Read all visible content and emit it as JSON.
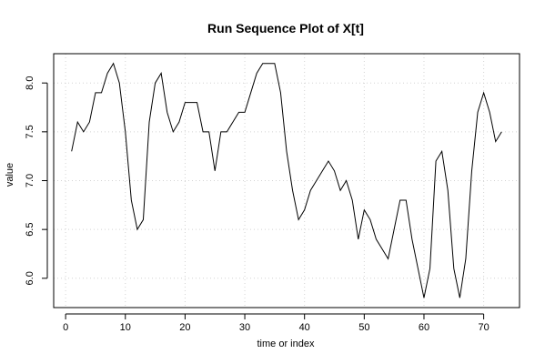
{
  "chart_data": {
    "type": "line",
    "title": "Run Sequence Plot of X[t]",
    "xlabel": "time or index",
    "ylabel": "value",
    "xlim": [
      -2,
      76
    ],
    "ylim": [
      5.7,
      8.3
    ],
    "x_ticks": [
      0,
      10,
      20,
      30,
      40,
      50,
      60,
      70
    ],
    "y_ticks": [
      6.0,
      6.5,
      7.0,
      7.5,
      8.0
    ],
    "y_tick_labels": [
      "6.0",
      "6.5",
      "7.0",
      "7.5",
      "8.0"
    ],
    "grid": true,
    "series": [
      {
        "color": "#000000",
        "x": [
          1,
          2,
          3,
          4,
          5,
          6,
          7,
          8,
          9,
          10,
          11,
          12,
          13,
          14,
          15,
          16,
          17,
          18,
          19,
          20,
          21,
          22,
          23,
          24,
          25,
          26,
          27,
          28,
          29,
          30,
          31,
          32,
          33,
          34,
          35,
          36,
          37,
          38,
          39,
          40,
          41,
          42,
          43,
          44,
          45,
          46,
          47,
          48,
          49,
          50,
          51,
          52,
          53,
          54,
          55,
          56,
          57,
          58,
          59,
          60,
          61,
          62,
          63,
          64,
          65,
          66,
          67,
          68,
          69,
          70,
          71,
          72,
          73
        ],
        "values": [
          7.3,
          7.6,
          7.5,
          7.6,
          7.9,
          7.9,
          8.1,
          8.2,
          8.0,
          7.5,
          6.8,
          6.5,
          6.6,
          7.6,
          8.0,
          8.1,
          7.7,
          7.5,
          7.6,
          7.8,
          7.8,
          7.8,
          7.5,
          7.5,
          7.1,
          7.5,
          7.5,
          7.6,
          7.7,
          7.7,
          7.9,
          8.1,
          8.2,
          8.2,
          8.2,
          7.9,
          7.3,
          6.9,
          6.6,
          6.7,
          6.9,
          7.0,
          7.1,
          7.2,
          7.1,
          6.9,
          7.0,
          6.8,
          6.4,
          6.7,
          6.6,
          6.4,
          6.3,
          6.2,
          6.5,
          6.8,
          6.8,
          6.4,
          6.1,
          5.8,
          6.1,
          7.2,
          7.3,
          6.9,
          6.1,
          5.8,
          6.2,
          7.1,
          7.7,
          7.9,
          7.7,
          7.4,
          7.5
        ]
      }
    ]
  }
}
